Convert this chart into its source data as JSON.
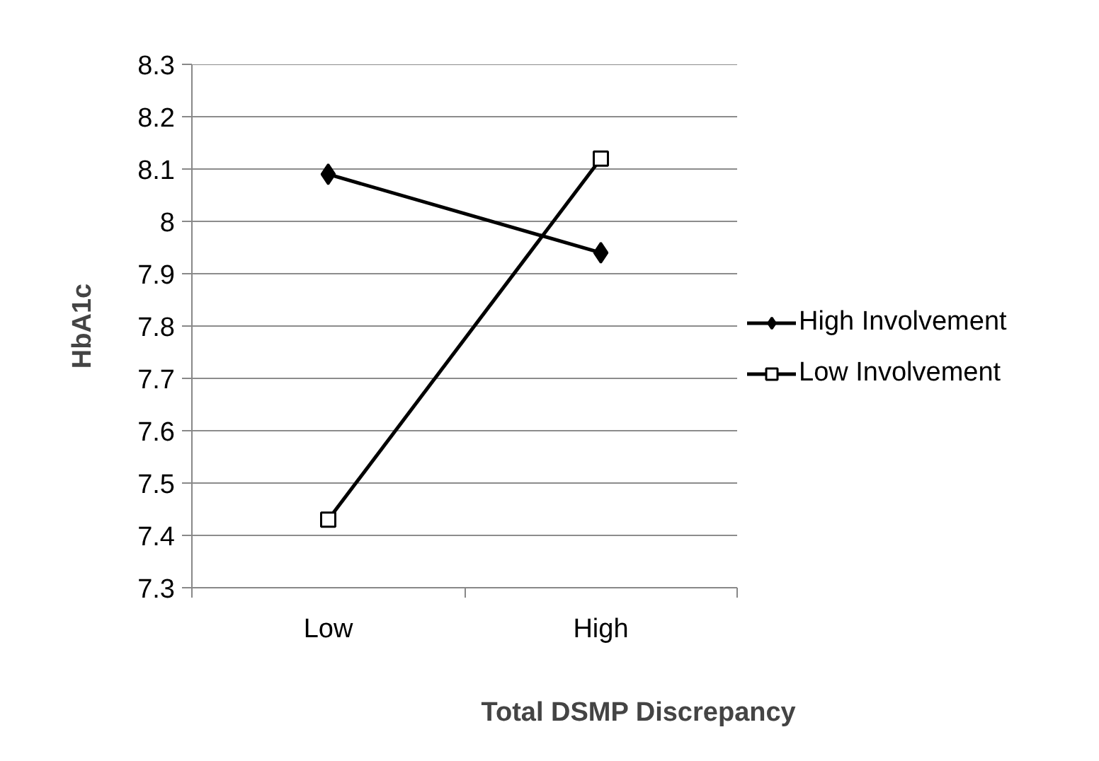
{
  "chart_data": {
    "type": "line",
    "xlabel": "Total DSMP Discrepancy",
    "ylabel": "HbA1c",
    "categories": [
      "Low",
      "High"
    ],
    "series": [
      {
        "name": "High Involvement",
        "color": "#000000",
        "marker": "diamond",
        "values": [
          8.09,
          7.94
        ]
      },
      {
        "name": "Low Involvement",
        "color": "#000000",
        "marker": "square",
        "values": [
          7.43,
          8.12
        ]
      }
    ],
    "ylim": [
      7.3,
      8.3
    ],
    "yticks": [
      7.3,
      7.4,
      7.5,
      7.6,
      7.7,
      7.8,
      7.9,
      8,
      8.1,
      8.2,
      8.3
    ],
    "grid": "y",
    "legend": "right",
    "line_style": "solid"
  }
}
